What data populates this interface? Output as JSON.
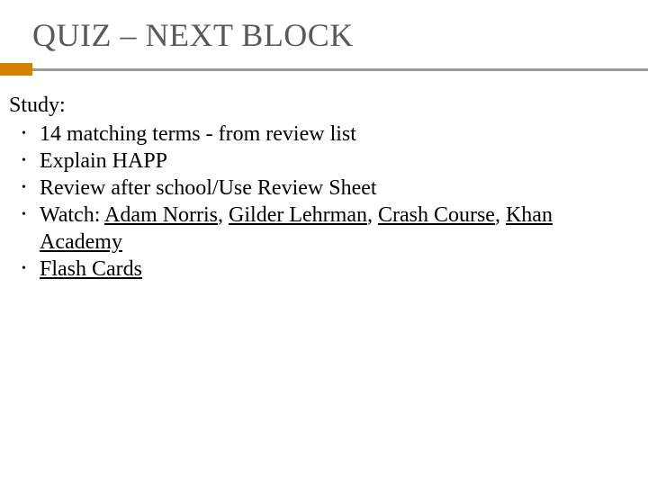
{
  "slide": {
    "title": "QUIZ – NEXT BLOCK",
    "intro": "Study:",
    "bullets": {
      "b0": "14 matching terms - from review list",
      "b1": "Explain HAPP",
      "b2": "Review after school/Use Review Sheet",
      "b3_prefix": "Watch: ",
      "b3_link1": "Adam Norris",
      "b3_sep1": ", ",
      "b3_link2": "Gilder Lehrman",
      "b3_sep2": ", ",
      "b3_link3": "Crash Course",
      "b3_sep3": ", ",
      "b3_link4": "Khan Academy",
      "b4_link": "Flash Cards"
    }
  },
  "style": {
    "title_color": "#595959",
    "accent_color": "#d48100",
    "rule_color": "#9a9a9a",
    "background": "#ffffff",
    "font_family": "Georgia, serif",
    "title_fontsize": 36,
    "body_fontsize": 24
  }
}
